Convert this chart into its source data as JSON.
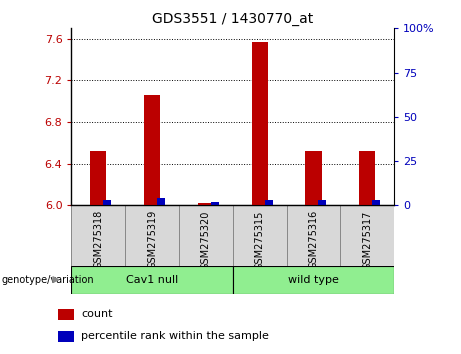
{
  "title": "GDS3551 / 1430770_at",
  "samples": [
    "GSM275318",
    "GSM275319",
    "GSM275320",
    "GSM275315",
    "GSM275316",
    "GSM275317"
  ],
  "count_values": [
    6.52,
    7.06,
    6.02,
    7.57,
    6.52,
    6.52
  ],
  "percentile_values": [
    3,
    4,
    2,
    3,
    3,
    3
  ],
  "ylim_left": [
    6.0,
    7.7
  ],
  "ylim_right": [
    0,
    100
  ],
  "yticks_left": [
    6.0,
    6.4,
    6.8,
    7.2,
    7.6
  ],
  "yticks_right": [
    0,
    25,
    50,
    75,
    100
  ],
  "ytick_labels_right": [
    "0",
    "25",
    "50",
    "75",
    "100%"
  ],
  "count_bar_width": 0.3,
  "percentile_bar_width": 0.15,
  "count_color": "#bb0000",
  "percentile_color": "#0000bb",
  "grid_color": "#000000",
  "groups": [
    {
      "label": "Cav1 null",
      "start": 0,
      "end": 3,
      "color": "#90ee90"
    },
    {
      "label": "wild type",
      "start": 3,
      "end": 6,
      "color": "#90ee90"
    }
  ],
  "group_label": "genotype/variation",
  "legend_items": [
    {
      "color": "#bb0000",
      "label": "count"
    },
    {
      "color": "#0000bb",
      "label": "percentile rank within the sample"
    }
  ],
  "tick_bg_color": "#d8d8d8",
  "tick_edge_color": "#888888",
  "axis_left_color": "#bb0000",
  "axis_right_color": "#0000bb",
  "group_border_color": "#000000",
  "fig_bg": "#ffffff"
}
